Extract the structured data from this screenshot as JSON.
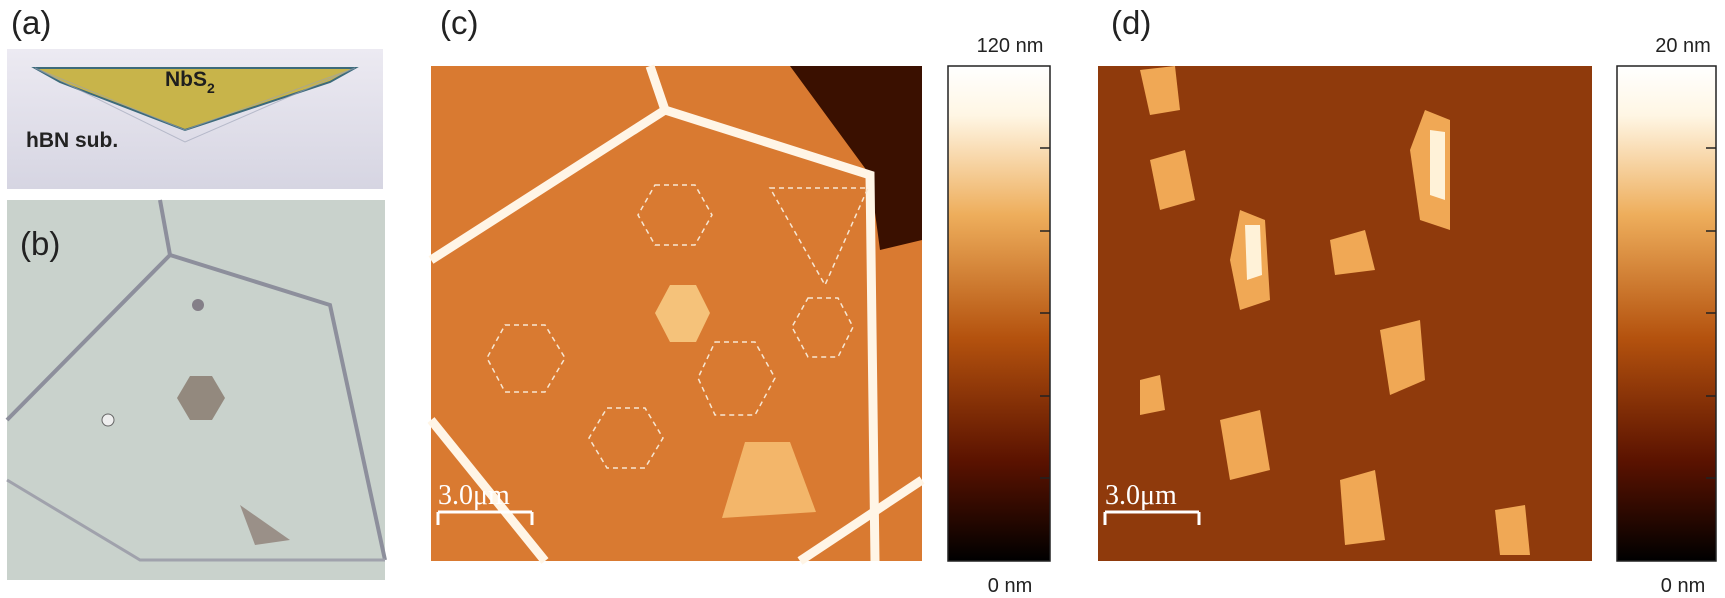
{
  "panel_a": {
    "label": "(a)",
    "material": "NbS",
    "material_subscript": "2",
    "substrate": "hBN sub."
  },
  "panel_b": {
    "label": "(b)"
  },
  "panel_c": {
    "label": "(c)",
    "scale_bar": "3.0μm",
    "colorbar_max": "120 nm",
    "colorbar_min": "0 nm"
  },
  "panel_d": {
    "label": "(d)",
    "scale_bar": "3.0μm",
    "colorbar_max": "20 nm",
    "colorbar_min": "0 nm"
  }
}
